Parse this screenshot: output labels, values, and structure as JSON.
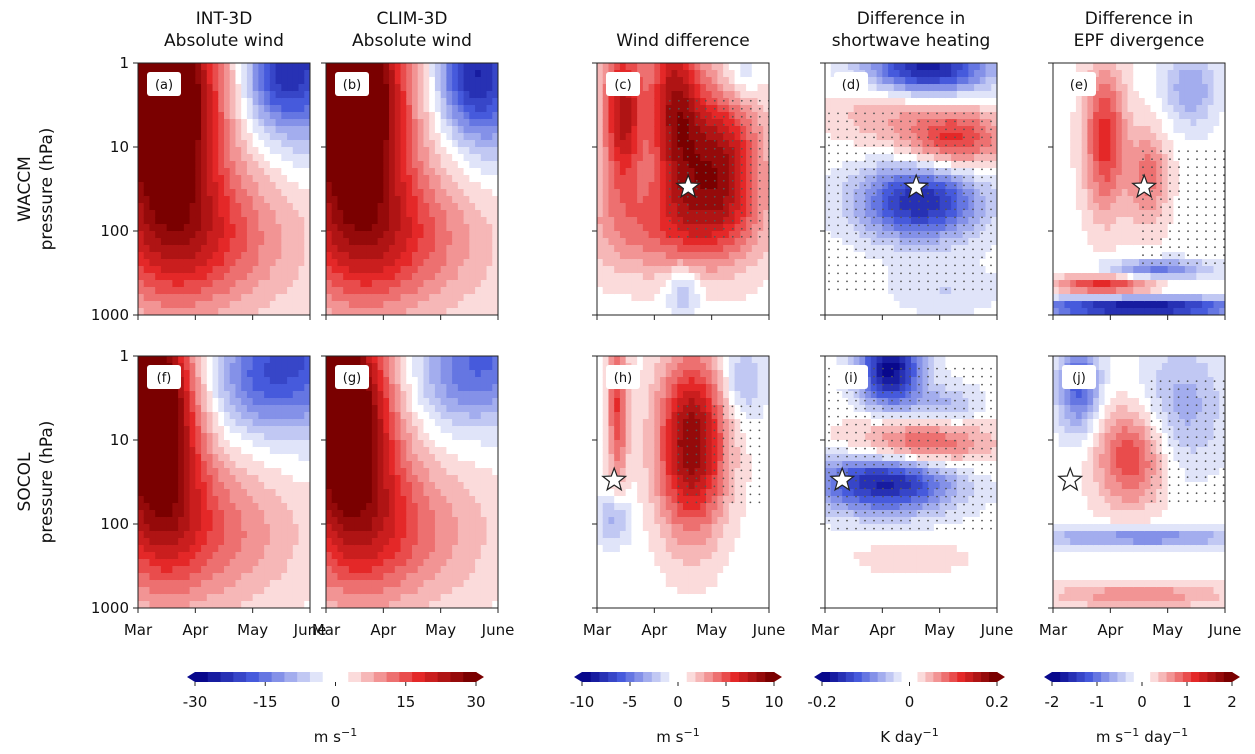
{
  "figure": {
    "column_titles": [
      [
        "INT-3D",
        "Absolute wind"
      ],
      [
        "CLIM-3D",
        "Absolute wind"
      ],
      [
        "Wind difference"
      ],
      [
        "Difference in",
        "shortwave heating"
      ],
      [
        "Difference in",
        "EPF divergence"
      ]
    ],
    "row_titles": [
      {
        "model": "WACCM",
        "axis": "pressure (hPa)"
      },
      {
        "model": "SOCOL",
        "axis": "pressure (hPa)"
      }
    ],
    "y_ticks": [
      "1",
      "10",
      "100",
      "1000"
    ],
    "x_ticks": [
      "Mar",
      "Apr",
      "May",
      "June"
    ],
    "panel_labels": [
      "(a)",
      "(b)",
      "(c)",
      "(d)",
      "(e)",
      "(f)",
      "(g)",
      "(h)",
      "(i)",
      "(j)"
    ],
    "colors": {
      "neg_max": "#08088c",
      "neutral": "#ffffff",
      "pos_max": "#7a0000",
      "stipple": "#555555",
      "contour": "#555555"
    }
  },
  "colorbars": [
    {
      "ticks": [
        "-30",
        "-15",
        "0",
        "15",
        "30"
      ],
      "label_unit": "m s",
      "label_exp": "−1"
    },
    {
      "ticks": [
        "-10",
        "-5",
        "0",
        "5",
        "10"
      ],
      "label_unit": "m s",
      "label_exp": "−1"
    },
    {
      "ticks": [
        "-0.2",
        "0",
        "0.2"
      ],
      "label_unit": "K day",
      "label_exp": "−1"
    },
    {
      "ticks": [
        "-2",
        "-1",
        "0",
        "1",
        "2"
      ],
      "label_unit": "m s",
      "label_exp": "−1",
      "label_unit2": "day",
      "label_exp2": "−1"
    }
  ],
  "chart_data": [
    {
      "type": "heatmap",
      "panel": "(a)",
      "x_axis": [
        "Mar",
        "Apr",
        "May",
        "June"
      ],
      "y_axis": "pressure (hPa)",
      "ylim": [
        1000,
        1
      ],
      "y_scale": "log",
      "clim": [
        -30,
        30
      ],
      "unit": "m s-1",
      "stipple": false,
      "star": null,
      "fields": [
        {
          "x0": 0.1,
          "y0": 0.1,
          "rx": 0.3,
          "ry": 0.35,
          "a": 1.1
        },
        {
          "x0": 0.3,
          "y0": 0.7,
          "rx": 0.6,
          "ry": 0.3,
          "a": 0.55
        },
        {
          "x0": 0.2,
          "y0": 0.3,
          "rx": 0.3,
          "ry": 0.5,
          "a": 0.6
        },
        {
          "x0": 0.95,
          "y0": 0.0,
          "rx": 0.2,
          "ry": 0.3,
          "a": -0.75
        },
        {
          "x0": 0.75,
          "y0": 0.05,
          "rx": 0.15,
          "ry": 0.2,
          "a": -0.4
        }
      ]
    },
    {
      "type": "heatmap",
      "panel": "(b)",
      "x_axis": [
        "Mar",
        "Apr",
        "May",
        "June"
      ],
      "y_axis": "pressure (hPa)",
      "ylim": [
        1000,
        1
      ],
      "y_scale": "log",
      "clim": [
        -30,
        30
      ],
      "unit": "m s-1",
      "stipple": false,
      "star": null,
      "fields": [
        {
          "x0": 0.1,
          "y0": 0.1,
          "rx": 0.3,
          "ry": 0.35,
          "a": 1.1
        },
        {
          "x0": 0.3,
          "y0": 0.7,
          "rx": 0.6,
          "ry": 0.3,
          "a": 0.55
        },
        {
          "x0": 0.2,
          "y0": 0.3,
          "rx": 0.3,
          "ry": 0.5,
          "a": 0.6
        },
        {
          "x0": 0.95,
          "y0": 0.05,
          "rx": 0.22,
          "ry": 0.3,
          "a": -0.7
        },
        {
          "x0": 0.78,
          "y0": 0.05,
          "rx": 0.15,
          "ry": 0.2,
          "a": -0.35
        }
      ]
    },
    {
      "type": "heatmap",
      "panel": "(c)",
      "x_axis": [
        "Mar",
        "Apr",
        "May",
        "June"
      ],
      "y_axis": "pressure (hPa)",
      "ylim": [
        1000,
        1
      ],
      "y_scale": "log",
      "clim": [
        -10,
        10
      ],
      "unit": "m s-1",
      "stipple": true,
      "stipple_region": [
        0.4,
        0.15,
        1.0,
        0.7
      ],
      "star": {
        "month": "Apr 20",
        "pressure_hPa": 30
      },
      "fields": [
        {
          "x0": 0.15,
          "y0": 0.2,
          "rx": 0.12,
          "ry": 0.3,
          "a": 0.8
        },
        {
          "x0": 0.45,
          "y0": 0.15,
          "rx": 0.15,
          "ry": 0.35,
          "a": 0.75
        },
        {
          "x0": 0.7,
          "y0": 0.4,
          "rx": 0.25,
          "ry": 0.3,
          "a": 0.85
        },
        {
          "x0": 0.4,
          "y0": 0.65,
          "rx": 0.5,
          "ry": 0.2,
          "a": 0.4
        },
        {
          "x0": 0.85,
          "y0": 0.05,
          "rx": 0.1,
          "ry": 0.1,
          "a": -0.2
        },
        {
          "x0": 0.5,
          "y0": 0.9,
          "rx": 0.1,
          "ry": 0.1,
          "a": -0.3
        }
      ]
    },
    {
      "type": "heatmap",
      "panel": "(d)",
      "x_axis": [
        "Mar",
        "Apr",
        "May",
        "June"
      ],
      "y_axis": "pressure (hPa)",
      "ylim": [
        1000,
        1
      ],
      "y_scale": "log",
      "clim": [
        -0.2,
        0.2
      ],
      "unit": "K day-1",
      "stipple": true,
      "stipple_region": [
        0.0,
        0.2,
        1.0,
        0.9
      ],
      "star": {
        "month": "Apr 20",
        "pressure_hPa": 30
      },
      "fields": [
        {
          "x0": 0.6,
          "y0": 0.02,
          "rx": 0.35,
          "ry": 0.1,
          "a": -0.9
        },
        {
          "x0": 0.75,
          "y0": 0.3,
          "rx": 0.3,
          "ry": 0.12,
          "a": 0.6
        },
        {
          "x0": 0.55,
          "y0": 0.55,
          "rx": 0.35,
          "ry": 0.15,
          "a": -0.85
        },
        {
          "x0": 0.3,
          "y0": 0.2,
          "rx": 0.3,
          "ry": 0.12,
          "a": 0.2
        },
        {
          "x0": 0.7,
          "y0": 0.9,
          "rx": 0.3,
          "ry": 0.1,
          "a": -0.15
        }
      ]
    },
    {
      "type": "heatmap",
      "panel": "(e)",
      "x_axis": [
        "Mar",
        "Apr",
        "May",
        "June"
      ],
      "y_axis": "pressure (hPa)",
      "ylim": [
        1000,
        1
      ],
      "y_scale": "log",
      "clim": [
        -2,
        2
      ],
      "unit": "m s-1 day-1",
      "stipple": true,
      "stipple_region": [
        0.5,
        0.35,
        1.0,
        0.8
      ],
      "star": {
        "month": "Apr 20",
        "pressure_hPa": 30
      },
      "fields": [
        {
          "x0": 0.3,
          "y0": 0.3,
          "rx": 0.12,
          "ry": 0.3,
          "a": 0.6
        },
        {
          "x0": 0.55,
          "y0": 0.45,
          "rx": 0.12,
          "ry": 0.2,
          "a": 0.4
        },
        {
          "x0": 0.8,
          "y0": 0.1,
          "rx": 0.15,
          "ry": 0.15,
          "a": -0.35
        },
        {
          "x0": 0.5,
          "y0": 0.97,
          "rx": 0.6,
          "ry": 0.04,
          "a": -1.0
        },
        {
          "x0": 0.6,
          "y0": 0.82,
          "rx": 0.3,
          "ry": 0.04,
          "a": -0.5
        },
        {
          "x0": 0.3,
          "y0": 0.88,
          "rx": 0.3,
          "ry": 0.04,
          "a": 0.6
        }
      ]
    },
    {
      "type": "heatmap",
      "panel": "(f)",
      "x_axis": [
        "Mar",
        "Apr",
        "May",
        "June"
      ],
      "y_axis": "pressure (hPa)",
      "ylim": [
        1000,
        1
      ],
      "y_scale": "log",
      "clim": [
        -30,
        30
      ],
      "unit": "m s-1",
      "stipple": false,
      "star": null,
      "fields": [
        {
          "x0": 0.05,
          "y0": 0.15,
          "rx": 0.22,
          "ry": 0.35,
          "a": 1.15
        },
        {
          "x0": 0.3,
          "y0": 0.7,
          "rx": 0.6,
          "ry": 0.3,
          "a": 0.45
        },
        {
          "x0": 0.15,
          "y0": 0.4,
          "rx": 0.25,
          "ry": 0.45,
          "a": 0.55
        },
        {
          "x0": 0.95,
          "y0": 0.0,
          "rx": 0.35,
          "ry": 0.3,
          "a": -0.6
        },
        {
          "x0": 0.65,
          "y0": 0.1,
          "rx": 0.25,
          "ry": 0.2,
          "a": -0.3
        }
      ]
    },
    {
      "type": "heatmap",
      "panel": "(g)",
      "x_axis": [
        "Mar",
        "Apr",
        "May",
        "June"
      ],
      "y_axis": "pressure (hPa)",
      "ylim": [
        1000,
        1
      ],
      "y_scale": "log",
      "clim": [
        -30,
        30
      ],
      "unit": "m s-1",
      "stipple": false,
      "star": null,
      "fields": [
        {
          "x0": 0.05,
          "y0": 0.15,
          "rx": 0.25,
          "ry": 0.35,
          "a": 1.1
        },
        {
          "x0": 0.3,
          "y0": 0.7,
          "rx": 0.6,
          "ry": 0.3,
          "a": 0.45
        },
        {
          "x0": 0.18,
          "y0": 0.4,
          "rx": 0.28,
          "ry": 0.45,
          "a": 0.55
        },
        {
          "x0": 0.95,
          "y0": 0.0,
          "rx": 0.3,
          "ry": 0.25,
          "a": -0.5
        },
        {
          "x0": 0.7,
          "y0": 0.1,
          "rx": 0.25,
          "ry": 0.2,
          "a": -0.2
        }
      ]
    },
    {
      "type": "heatmap",
      "panel": "(h)",
      "x_axis": [
        "Mar",
        "Apr",
        "May",
        "June"
      ],
      "y_axis": "pressure (hPa)",
      "ylim": [
        1000,
        1
      ],
      "y_scale": "log",
      "clim": [
        -10,
        10
      ],
      "unit": "m s-1",
      "stipple": true,
      "stipple_region": [
        0.45,
        0.2,
        0.95,
        0.6
      ],
      "star": {
        "month": "Mar 10",
        "pressure_hPa": 30
      },
      "fields": [
        {
          "x0": 0.12,
          "y0": 0.2,
          "rx": 0.06,
          "ry": 0.3,
          "a": 0.55
        },
        {
          "x0": 0.55,
          "y0": 0.35,
          "rx": 0.2,
          "ry": 0.35,
          "a": 0.95
        },
        {
          "x0": 0.85,
          "y0": 0.1,
          "rx": 0.12,
          "ry": 0.15,
          "a": -0.3
        },
        {
          "x0": 0.1,
          "y0": 0.65,
          "rx": 0.1,
          "ry": 0.1,
          "a": -0.3
        }
      ]
    },
    {
      "type": "heatmap",
      "panel": "(i)",
      "x_axis": [
        "Mar",
        "Apr",
        "May",
        "June"
      ],
      "y_axis": "pressure (hPa)",
      "ylim": [
        1000,
        1
      ],
      "y_scale": "log",
      "clim": [
        -0.2,
        0.2
      ],
      "unit": "K day-1",
      "stipple": true,
      "stipple_region": [
        0.0,
        0.05,
        1.0,
        0.7
      ],
      "star": {
        "month": "Mar 10",
        "pressure_hPa": 30
      },
      "fields": [
        {
          "x0": 0.38,
          "y0": 0.05,
          "rx": 0.18,
          "ry": 0.15,
          "a": -1.0
        },
        {
          "x0": 0.55,
          "y0": 0.35,
          "rx": 0.4,
          "ry": 0.1,
          "a": 0.55
        },
        {
          "x0": 0.35,
          "y0": 0.5,
          "rx": 0.4,
          "ry": 0.12,
          "a": -0.9
        },
        {
          "x0": 0.7,
          "y0": 0.2,
          "rx": 0.2,
          "ry": 0.08,
          "a": -0.3
        },
        {
          "x0": 0.5,
          "y0": 0.8,
          "rx": 0.4,
          "ry": 0.08,
          "a": 0.1
        }
      ]
    },
    {
      "type": "heatmap",
      "panel": "(j)",
      "x_axis": [
        "Mar",
        "Apr",
        "May",
        "June"
      ],
      "y_axis": "pressure (hPa)",
      "ylim": [
        1000,
        1
      ],
      "y_scale": "log",
      "clim": [
        -2,
        2
      ],
      "unit": "m s-1 day-1",
      "stipple": true,
      "stipple_region": [
        0.55,
        0.1,
        1.0,
        0.6
      ],
      "star": {
        "month": "Mar 10",
        "pressure_hPa": 30
      },
      "fields": [
        {
          "x0": 0.15,
          "y0": 0.12,
          "rx": 0.12,
          "ry": 0.18,
          "a": -0.6
        },
        {
          "x0": 0.45,
          "y0": 0.4,
          "rx": 0.2,
          "ry": 0.2,
          "a": 0.55
        },
        {
          "x0": 0.75,
          "y0": 0.2,
          "rx": 0.25,
          "ry": 0.25,
          "a": -0.3
        },
        {
          "x0": 0.5,
          "y0": 0.72,
          "rx": 0.6,
          "ry": 0.04,
          "a": -0.45
        },
        {
          "x0": 0.5,
          "y0": 0.95,
          "rx": 0.5,
          "ry": 0.05,
          "a": 0.35
        }
      ]
    }
  ]
}
